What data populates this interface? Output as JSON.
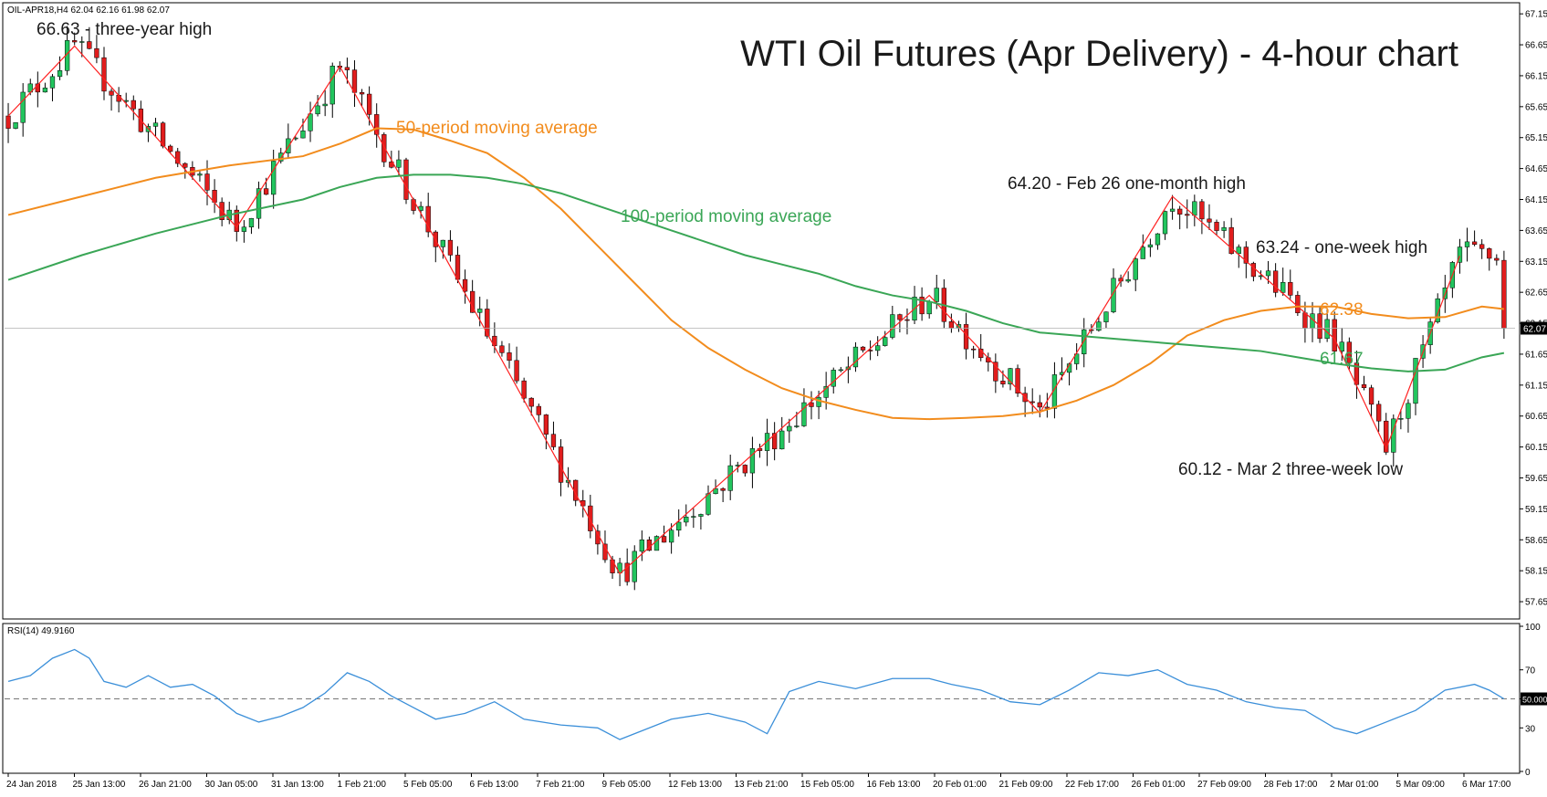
{
  "chart_data": {
    "type": "candlestick",
    "title": "WTI Oil Futures (Apr Delivery) - 4-hour chart",
    "symbol_info": "OIL-APR18,H4  62.04 62.16 61.98 62.07",
    "last_price_label": "62.07",
    "last_price": 62.07,
    "price_axis_labels": [
      "67.15",
      "66.65",
      "66.15",
      "65.65",
      "65.15",
      "64.65",
      "64.15",
      "63.65",
      "63.15",
      "62.65",
      "62.15",
      "61.65",
      "61.15",
      "60.65",
      "60.15",
      "59.65",
      "59.15",
      "58.65",
      "58.15",
      "57.65"
    ],
    "price_range": [
      57.4,
      67.3
    ],
    "time_labels": [
      "24 Jan 2018",
      "25 Jan 13:00",
      "26 Jan 21:00",
      "30 Jan 05:00",
      "31 Jan 13:00",
      "1 Feb 21:00",
      "5 Feb 05:00",
      "6 Feb 13:00",
      "7 Feb 21:00",
      "9 Feb 05:00",
      "12 Feb 13:00",
      "13 Feb 21:00",
      "15 Feb 05:00",
      "16 Feb 13:00",
      "20 Feb 01:00",
      "21 Feb 09:00",
      "22 Feb 17:00",
      "26 Feb 01:00",
      "27 Feb 09:00",
      "28 Feb 17:00",
      "2 Mar 01:00",
      "5 Mar 09:00",
      "6 Mar 17:00"
    ],
    "zigzag": [
      {
        "i": 0,
        "v": 65.5
      },
      {
        "i": 9,
        "v": 66.63
      },
      {
        "i": 31,
        "v": 63.7
      },
      {
        "i": 45,
        "v": 66.3
      },
      {
        "i": 83,
        "v": 58.1
      },
      {
        "i": 125,
        "v": 62.6
      },
      {
        "i": 140,
        "v": 60.7
      },
      {
        "i": 158,
        "v": 64.2
      },
      {
        "i": 180,
        "v": 61.9
      },
      {
        "i": 187,
        "v": 60.12
      },
      {
        "i": 197,
        "v": 63.24
      }
    ],
    "series": [
      {
        "name": "50-period moving average",
        "color": "#f28c1d",
        "points": [
          [
            0,
            63.9
          ],
          [
            10,
            64.2
          ],
          [
            20,
            64.5
          ],
          [
            30,
            64.7
          ],
          [
            40,
            64.85
          ],
          [
            45,
            65.05
          ],
          [
            50,
            65.3
          ],
          [
            55,
            65.28
          ],
          [
            60,
            65.1
          ],
          [
            65,
            64.9
          ],
          [
            70,
            64.5
          ],
          [
            75,
            64.0
          ],
          [
            80,
            63.4
          ],
          [
            85,
            62.8
          ],
          [
            90,
            62.2
          ],
          [
            95,
            61.75
          ],
          [
            100,
            61.4
          ],
          [
            105,
            61.1
          ],
          [
            110,
            60.9
          ],
          [
            115,
            60.75
          ],
          [
            120,
            60.62
          ],
          [
            125,
            60.6
          ],
          [
            130,
            60.62
          ],
          [
            135,
            60.65
          ],
          [
            140,
            60.72
          ],
          [
            145,
            60.9
          ],
          [
            150,
            61.15
          ],
          [
            155,
            61.5
          ],
          [
            160,
            61.95
          ],
          [
            165,
            62.2
          ],
          [
            170,
            62.35
          ],
          [
            175,
            62.42
          ],
          [
            180,
            62.42
          ],
          [
            185,
            62.3
          ],
          [
            190,
            62.23
          ],
          [
            195,
            62.25
          ],
          [
            200,
            62.42
          ],
          [
            203,
            62.38
          ]
        ]
      },
      {
        "name": "100-period moving average",
        "color": "#3aa656",
        "points": [
          [
            0,
            62.85
          ],
          [
            10,
            63.25
          ],
          [
            20,
            63.6
          ],
          [
            30,
            63.9
          ],
          [
            40,
            64.15
          ],
          [
            45,
            64.35
          ],
          [
            50,
            64.5
          ],
          [
            55,
            64.55
          ],
          [
            60,
            64.55
          ],
          [
            65,
            64.5
          ],
          [
            70,
            64.4
          ],
          [
            75,
            64.25
          ],
          [
            80,
            64.05
          ],
          [
            85,
            63.85
          ],
          [
            90,
            63.65
          ],
          [
            95,
            63.45
          ],
          [
            100,
            63.25
          ],
          [
            105,
            63.1
          ],
          [
            110,
            62.95
          ],
          [
            115,
            62.75
          ],
          [
            120,
            62.6
          ],
          [
            125,
            62.5
          ],
          [
            130,
            62.35
          ],
          [
            135,
            62.15
          ],
          [
            140,
            62.0
          ],
          [
            145,
            61.95
          ],
          [
            150,
            61.9
          ],
          [
            155,
            61.85
          ],
          [
            160,
            61.8
          ],
          [
            165,
            61.75
          ],
          [
            170,
            61.7
          ],
          [
            175,
            61.6
          ],
          [
            180,
            61.5
          ],
          [
            185,
            61.42
          ],
          [
            190,
            61.37
          ],
          [
            195,
            61.4
          ],
          [
            200,
            61.6
          ],
          [
            203,
            61.67
          ]
        ]
      }
    ],
    "ma_end_labels": {
      "ma50": "62.38",
      "ma100": "61.67"
    },
    "annotations": [
      {
        "id": "three-year-high",
        "text": "66.63 - three-year high"
      },
      {
        "id": "feb26-high",
        "text": "64.20 - Feb 26 one-month high"
      },
      {
        "id": "one-week-high",
        "text": "63.24 - one-week high"
      },
      {
        "id": "mar2-low",
        "text": "60.12 - Mar 2 three-week low"
      },
      {
        "id": "ma50-label",
        "text": "50-period moving average"
      },
      {
        "id": "ma100-label",
        "text": "100-period moving average"
      }
    ],
    "rsi": {
      "label": "RSI(14) 49.9160",
      "value": 49.916,
      "axis_labels": [
        "100",
        "70",
        "50.0000",
        "30",
        "0"
      ],
      "range": [
        0,
        100
      ],
      "level": 50,
      "points": [
        [
          0,
          62
        ],
        [
          3,
          66
        ],
        [
          6,
          78
        ],
        [
          9,
          84
        ],
        [
          11,
          78
        ],
        [
          13,
          62
        ],
        [
          16,
          58
        ],
        [
          19,
          66
        ],
        [
          22,
          58
        ],
        [
          25,
          60
        ],
        [
          28,
          52
        ],
        [
          31,
          40
        ],
        [
          34,
          34
        ],
        [
          37,
          38
        ],
        [
          40,
          44
        ],
        [
          43,
          54
        ],
        [
          46,
          68
        ],
        [
          49,
          62
        ],
        [
          52,
          52
        ],
        [
          55,
          44
        ],
        [
          58,
          36
        ],
        [
          62,
          40
        ],
        [
          66,
          48
        ],
        [
          70,
          36
        ],
        [
          75,
          32
        ],
        [
          80,
          30
        ],
        [
          83,
          22
        ],
        [
          86,
          28
        ],
        [
          90,
          36
        ],
        [
          95,
          40
        ],
        [
          100,
          34
        ],
        [
          103,
          26
        ],
        [
          106,
          55
        ],
        [
          110,
          62
        ],
        [
          115,
          57
        ],
        [
          120,
          64
        ],
        [
          125,
          64
        ],
        [
          128,
          60
        ],
        [
          132,
          56
        ],
        [
          136,
          48
        ],
        [
          140,
          46
        ],
        [
          144,
          56
        ],
        [
          148,
          68
        ],
        [
          152,
          66
        ],
        [
          156,
          70
        ],
        [
          160,
          60
        ],
        [
          164,
          56
        ],
        [
          168,
          48
        ],
        [
          172,
          44
        ],
        [
          176,
          42
        ],
        [
          180,
          30
        ],
        [
          183,
          26
        ],
        [
          187,
          34
        ],
        [
          191,
          42
        ],
        [
          195,
          56
        ],
        [
          199,
          60
        ],
        [
          201,
          56
        ],
        [
          203,
          50
        ]
      ]
    },
    "rsi_time_labels": "see time_labels",
    "grid": false,
    "legend": "none"
  }
}
